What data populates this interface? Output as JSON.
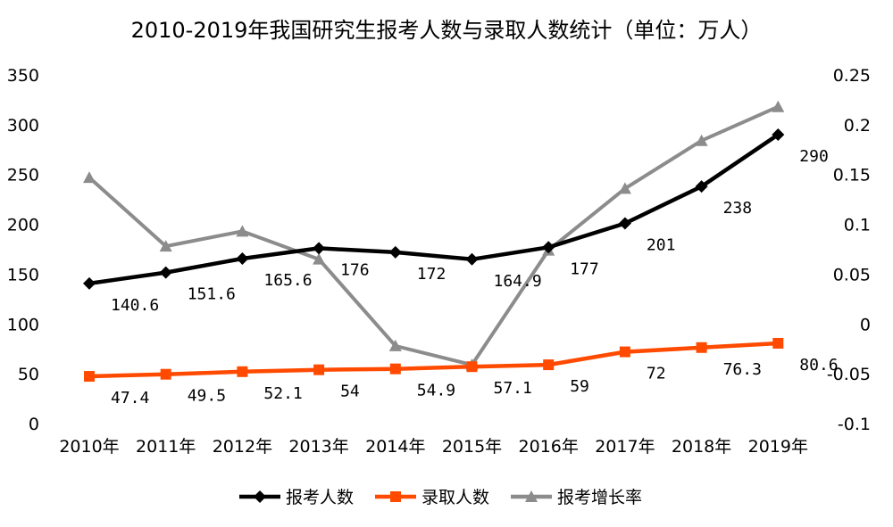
{
  "chart_data": {
    "type": "line",
    "title": "2010-2019年我国研究生报考人数与录取人数统计（单位：万人）",
    "categories": [
      "2010年",
      "2011年",
      "2012年",
      "2013年",
      "2014年",
      "2015年",
      "2016年",
      "2017年",
      "2018年",
      "2019年"
    ],
    "y_left": {
      "ylim": [
        0,
        350
      ],
      "ticks": [
        "0",
        "50",
        "100",
        "150",
        "200",
        "250",
        "300",
        "350"
      ]
    },
    "y_right": {
      "ylim": [
        -0.1,
        0.25
      ],
      "ticks": [
        "-0.1",
        "-0.05",
        "0",
        "0.05",
        "0.1",
        "0.15",
        "0.2",
        "0.25"
      ]
    },
    "grid": false,
    "legend_position": "bottom",
    "series": [
      {
        "name": "报考人数",
        "axis": "left",
        "color": "#000000",
        "marker": "diamond",
        "values": [
          140.6,
          151.6,
          165.6,
          176,
          172,
          164.9,
          177,
          201,
          238,
          290
        ],
        "labels": [
          "140.6",
          "151.6",
          "165.6",
          "176",
          "172",
          "164.9",
          "177",
          "201",
          "238",
          "290"
        ]
      },
      {
        "name": "录取人数",
        "axis": "left",
        "color": "#ff4a00",
        "marker": "square",
        "values": [
          47.4,
          49.5,
          52.1,
          54,
          54.9,
          57.1,
          59,
          72,
          76.3,
          80.6
        ],
        "labels": [
          "47.4",
          "49.5",
          "52.1",
          "54",
          "54.9",
          "57.1",
          "59",
          "72",
          "76.3",
          "80.6"
        ]
      },
      {
        "name": "报考增长率",
        "axis": "right",
        "color": "#8c8c8c",
        "marker": "triangle",
        "values": [
          0.147,
          0.078,
          0.093,
          0.065,
          -0.022,
          -0.041,
          0.074,
          0.136,
          0.184,
          0.218
        ]
      }
    ]
  }
}
